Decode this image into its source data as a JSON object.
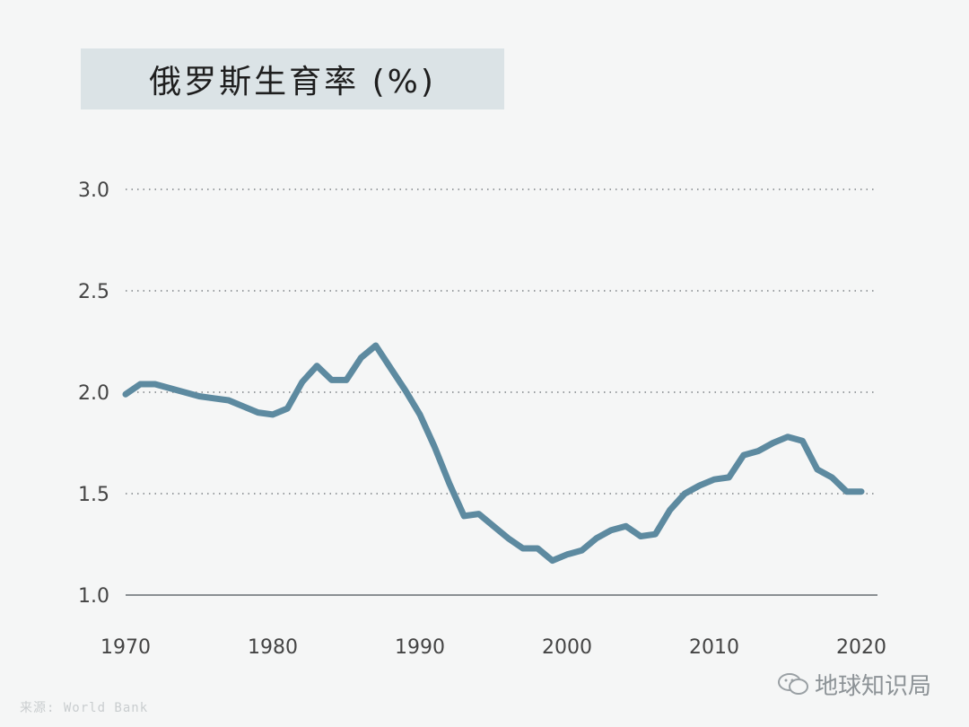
{
  "chart_data": {
    "type": "line",
    "title": "俄罗斯生育率 (%)",
    "xlim": [
      1970,
      2020
    ],
    "ylim": [
      1.0,
      3.0
    ],
    "yticks": [
      "3.0",
      "2.5",
      "2.0",
      "1.5",
      "1.0"
    ],
    "xticks": [
      "1970",
      "1980",
      "1990",
      "2000",
      "2010",
      "2020"
    ],
    "grid": true,
    "series": [
      {
        "color": "#5d8aa0",
        "x": [
          1970,
          1971,
          1972,
          1973,
          1974,
          1975,
          1976,
          1977,
          1978,
          1979,
          1980,
          1981,
          1982,
          1983,
          1984,
          1985,
          1986,
          1987,
          1988,
          1989,
          1990,
          1991,
          1992,
          1993,
          1994,
          1995,
          1996,
          1997,
          1998,
          1999,
          2000,
          2001,
          2002,
          2003,
          2004,
          2005,
          2006,
          2007,
          2008,
          2009,
          2010,
          2011,
          2012,
          2013,
          2014,
          2015,
          2016,
          2017,
          2018,
          2019,
          2020
        ],
        "values": [
          1.99,
          2.04,
          2.04,
          2.02,
          2.0,
          1.98,
          1.97,
          1.96,
          1.93,
          1.9,
          1.89,
          1.92,
          2.05,
          2.13,
          2.06,
          2.06,
          2.17,
          2.23,
          2.12,
          2.01,
          1.89,
          1.73,
          1.55,
          1.39,
          1.4,
          1.34,
          1.28,
          1.23,
          1.23,
          1.17,
          1.2,
          1.22,
          1.28,
          1.32,
          1.34,
          1.29,
          1.3,
          1.42,
          1.5,
          1.54,
          1.57,
          1.58,
          1.69,
          1.71,
          1.75,
          1.78,
          1.76,
          1.62,
          1.58,
          1.51,
          1.51
        ]
      }
    ]
  },
  "source_label": "来源: World Bank",
  "brand_label": "地球知识局"
}
